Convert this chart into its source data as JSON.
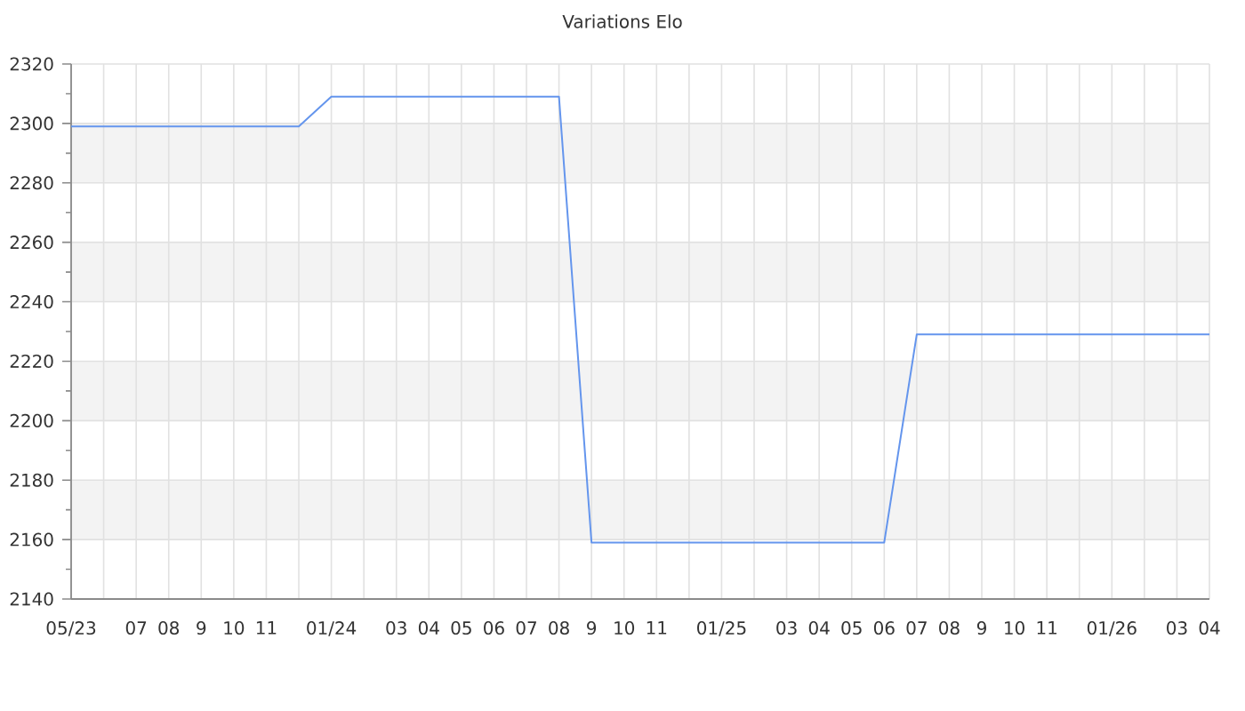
{
  "chart_data": {
    "type": "line",
    "title": "Variations Elo",
    "x": [
      "2023-05",
      "2023-06",
      "2023-07",
      "2023-08",
      "2023-09",
      "2023-10",
      "2023-11",
      "2023-12",
      "2024-01",
      "2024-02",
      "2024-03",
      "2024-04",
      "2024-05",
      "2024-06",
      "2024-07",
      "2024-08",
      "2024-09",
      "2024-10",
      "2024-11",
      "2024-12",
      "2025-01",
      "2025-02",
      "2025-03",
      "2025-04",
      "2025-05",
      "2025-06",
      "2025-07",
      "2025-08",
      "2025-09",
      "2025-10",
      "2025-11",
      "2025-12",
      "2026-01",
      "2026-02",
      "2026-03",
      "2026-04"
    ],
    "values": [
      2299,
      2299,
      2299,
      2299,
      2299,
      2299,
      2299,
      2299,
      2309,
      2309,
      2309,
      2309,
      2309,
      2309,
      2309,
      2309,
      2159,
      2159,
      2159,
      2159,
      2159,
      2159,
      2159,
      2159,
      2159,
      2159,
      2229,
      2229,
      2229,
      2229,
      2229,
      2229,
      2229,
      2229,
      2229,
      2229
    ],
    "color": "#6495ed",
    "line_style": "solid",
    "xlim": [
      "2023-05",
      "2026-04"
    ],
    "xticks": [
      {
        "value": "2023-05",
        "label": "05/23"
      },
      {
        "value": "2023-06",
        "label": null
      },
      {
        "value": "2023-07",
        "label": "07"
      },
      {
        "value": "2023-08",
        "label": "08"
      },
      {
        "value": "2023-09",
        "label": "9"
      },
      {
        "value": "2023-10",
        "label": "10"
      },
      {
        "value": "2023-11",
        "label": "11"
      },
      {
        "value": "2023-12",
        "label": null
      },
      {
        "value": "2024-01",
        "label": "01/24"
      },
      {
        "value": "2024-02",
        "label": null
      },
      {
        "value": "2024-03",
        "label": "03"
      },
      {
        "value": "2024-04",
        "label": "04"
      },
      {
        "value": "2024-05",
        "label": "05"
      },
      {
        "value": "2024-06",
        "label": "06"
      },
      {
        "value": "2024-07",
        "label": "07"
      },
      {
        "value": "2024-08",
        "label": "08"
      },
      {
        "value": "2024-09",
        "label": "9"
      },
      {
        "value": "2024-10",
        "label": "10"
      },
      {
        "value": "2024-11",
        "label": "11"
      },
      {
        "value": "2024-12",
        "label": null
      },
      {
        "value": "2025-01",
        "label": "01/25"
      },
      {
        "value": "2025-02",
        "label": null
      },
      {
        "value": "2025-03",
        "label": "03"
      },
      {
        "value": "2025-04",
        "label": "04"
      },
      {
        "value": "2025-05",
        "label": "05"
      },
      {
        "value": "2025-06",
        "label": "06"
      },
      {
        "value": "2025-07",
        "label": "07"
      },
      {
        "value": "2025-08",
        "label": "08"
      },
      {
        "value": "2025-09",
        "label": "9"
      },
      {
        "value": "2025-10",
        "label": "10"
      },
      {
        "value": "2025-11",
        "label": "11"
      },
      {
        "value": "2025-12",
        "label": null
      },
      {
        "value": "2026-01",
        "label": "01/26"
      },
      {
        "value": "2026-02",
        "label": null
      },
      {
        "value": "2026-03",
        "label": "03"
      },
      {
        "value": "2026-04",
        "label": "04"
      }
    ],
    "ylim": [
      2140,
      2320
    ],
    "yticks": [
      2140,
      2160,
      2180,
      2200,
      2220,
      2240,
      2260,
      2280,
      2300,
      2320
    ],
    "bands": [
      {
        "axis": "y",
        "from": 2160,
        "to": 2180,
        "color": "#f3f3f3"
      },
      {
        "axis": "y",
        "from": 2200,
        "to": 2220,
        "color": "#f3f3f3"
      },
      {
        "axis": "y",
        "from": 2240,
        "to": 2260,
        "color": "#f3f3f3"
      },
      {
        "axis": "y",
        "from": 2280,
        "to": 2300,
        "color": "#f3f3f3"
      }
    ],
    "grid": true
  }
}
